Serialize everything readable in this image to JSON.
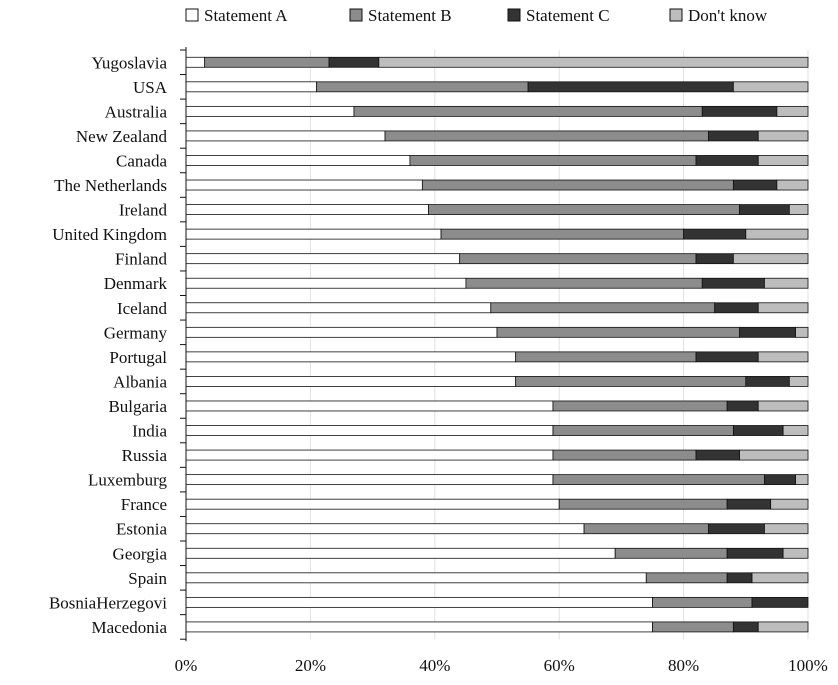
{
  "chart_data": {
    "type": "bar",
    "orientation": "horizontal",
    "stacked": true,
    "percent": true,
    "grid": true,
    "legend": "top",
    "xlim": [
      0,
      100
    ],
    "xticks": [
      0,
      20,
      40,
      60,
      80,
      100
    ],
    "xtick_labels": [
      "0%",
      "20%",
      "40%",
      "60%",
      "80%",
      "100%"
    ],
    "categories": [
      "Yugoslavia",
      "USA",
      "Australia",
      "New Zealand",
      "Canada",
      "The  Netherlands",
      "Ireland",
      "United Kingdom",
      "Finland",
      "Denmark",
      "Iceland",
      "Germany",
      "Portugal",
      "Albania",
      "Bulgaria",
      "India",
      "Russia",
      "Luxemburg",
      "France",
      "Estonia",
      "Georgia",
      "Spain",
      "BosniaHerzegovi",
      "Macedonia"
    ],
    "series": [
      {
        "name": "Statement A",
        "color": "#ffffff",
        "values": [
          3,
          21,
          27,
          32,
          36,
          38,
          39,
          41,
          44,
          45,
          49,
          50,
          53,
          53,
          59,
          59,
          59,
          59,
          60,
          64,
          69,
          74,
          75,
          75
        ]
      },
      {
        "name": "Statement B",
        "color": "#8c8c8c",
        "values": [
          20,
          34,
          56,
          52,
          46,
          50,
          50,
          39,
          38,
          38,
          36,
          39,
          29,
          37,
          28,
          29,
          23,
          34,
          27,
          20,
          18,
          13,
          16,
          13
        ]
      },
      {
        "name": "Statement C",
        "color": "#333333",
        "values": [
          8,
          33,
          12,
          8,
          10,
          7,
          8,
          10,
          6,
          10,
          7,
          9,
          10,
          7,
          5,
          8,
          7,
          5,
          7,
          9,
          9,
          4,
          9,
          4
        ]
      },
      {
        "name": "Don't know",
        "color": "#bdbdbd",
        "values": [
          69,
          12,
          5,
          8,
          8,
          5,
          3,
          10,
          12,
          7,
          8,
          2,
          8,
          3,
          8,
          4,
          11,
          2,
          6,
          7,
          4,
          9,
          0,
          8
        ]
      }
    ]
  }
}
